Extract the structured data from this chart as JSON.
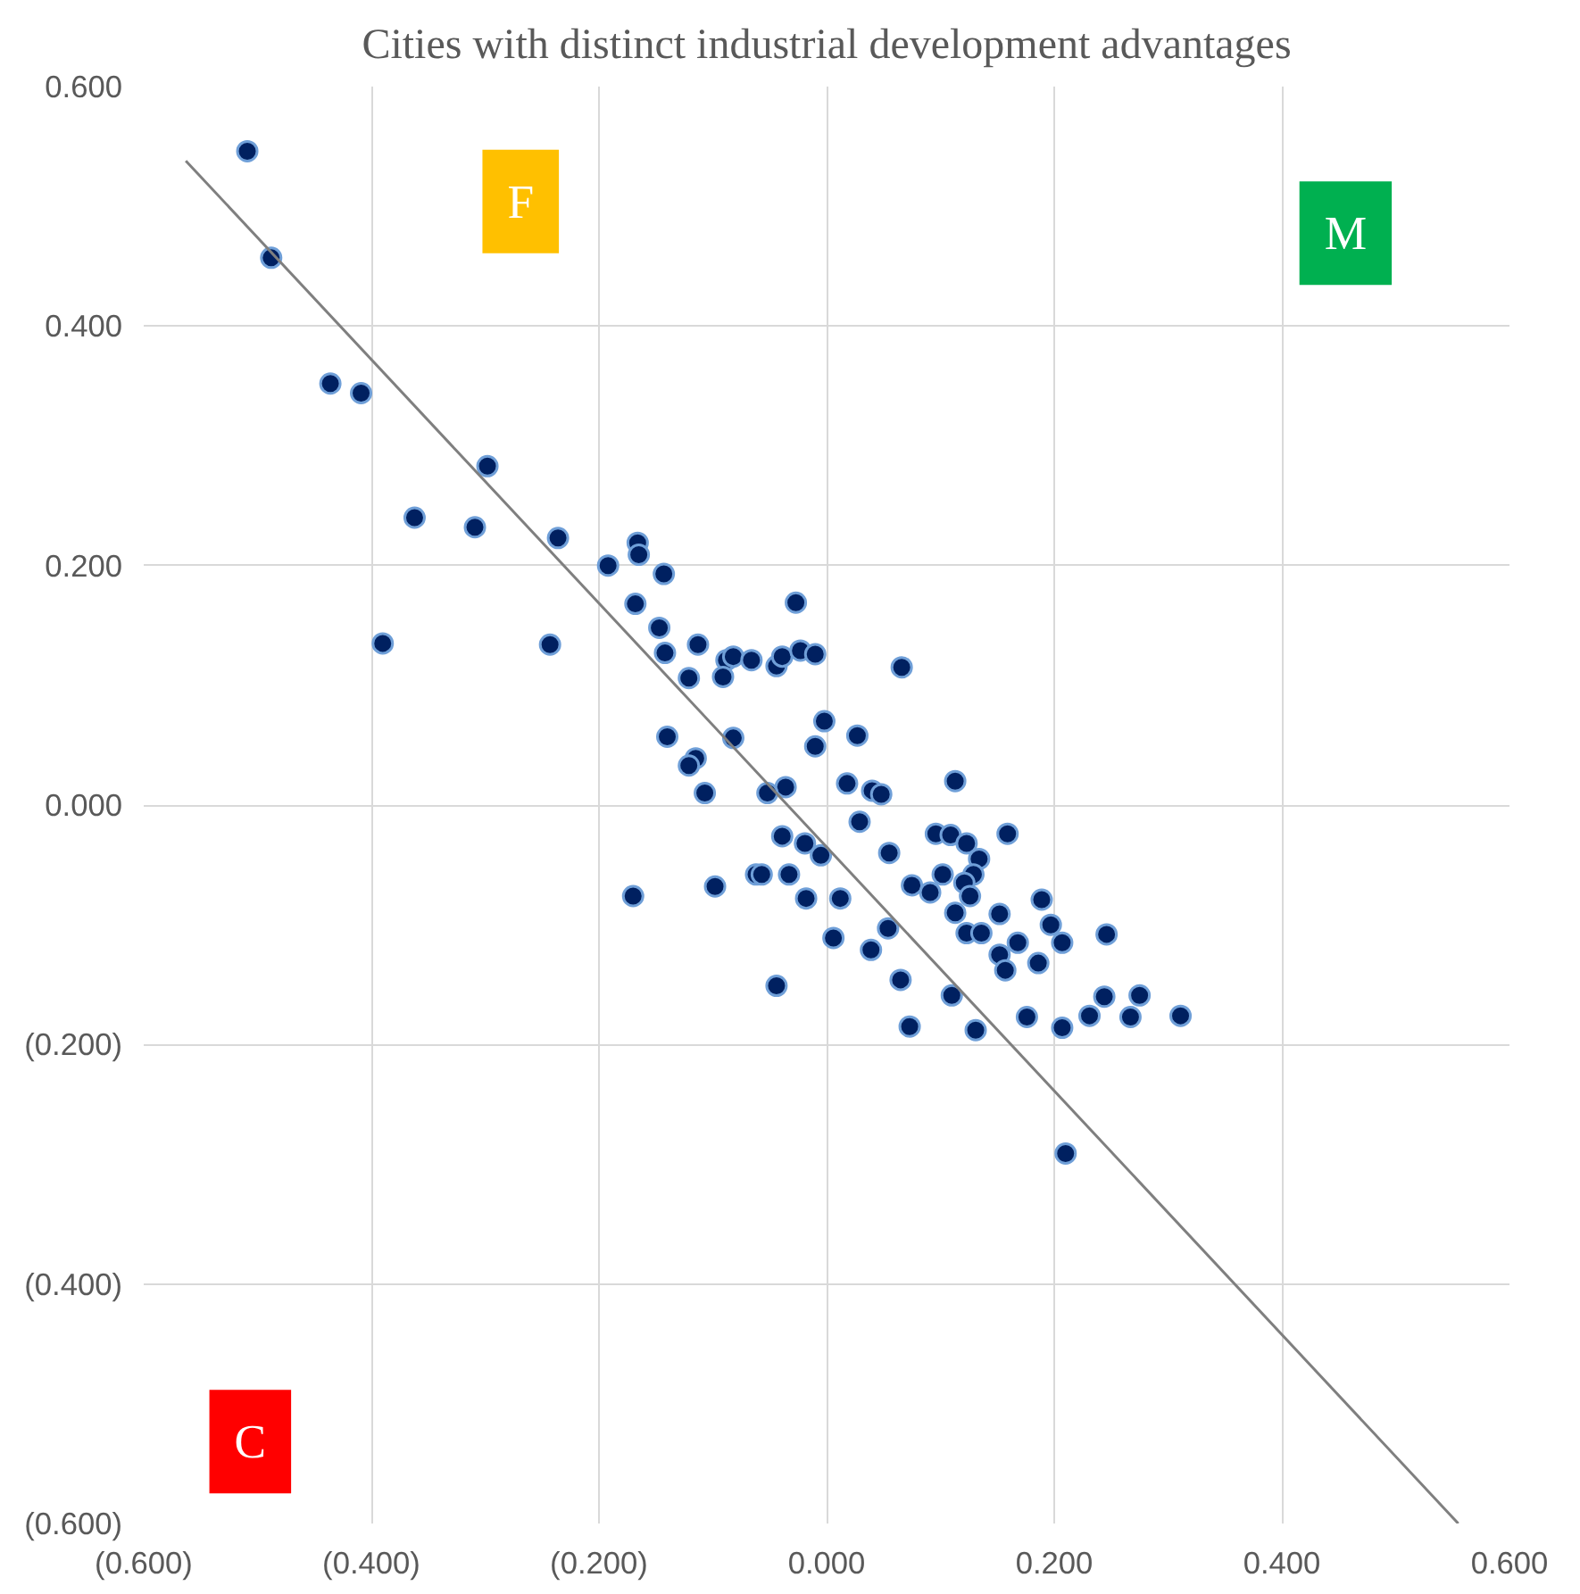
{
  "chart_data": {
    "type": "scatter",
    "title": "Cities with distinct industrial development advantages",
    "xlim": [
      -0.6,
      0.6
    ],
    "ylim": [
      -0.6,
      0.6
    ],
    "xticks": [
      {
        "value": -0.6,
        "label": "(0.600)"
      },
      {
        "value": -0.4,
        "label": "(0.400)"
      },
      {
        "value": -0.2,
        "label": "(0.200)"
      },
      {
        "value": 0,
        "label": "0.000"
      },
      {
        "value": 0.2,
        "label": "0.200"
      },
      {
        "value": 0.4,
        "label": "0.400"
      },
      {
        "value": 0.6,
        "label": "0.600"
      }
    ],
    "yticks": [
      {
        "value": -0.6,
        "label": "(0.600)"
      },
      {
        "value": -0.4,
        "label": "(0.400)"
      },
      {
        "value": -0.2,
        "label": "(0.200)"
      },
      {
        "value": 0,
        "label": "0.000"
      },
      {
        "value": 0.2,
        "label": "0.200"
      },
      {
        "value": 0.4,
        "label": "0.400"
      },
      {
        "value": 0.6,
        "label": "0.600"
      }
    ],
    "grid": true,
    "annotations": [
      "F",
      "M",
      "C"
    ],
    "series": [
      {
        "marker": "circle",
        "color": "#002060",
        "x": [
          -0.509,
          -0.488,
          -0.436,
          -0.409,
          -0.298,
          -0.362,
          -0.309,
          -0.236,
          -0.39,
          -0.243,
          -0.192,
          -0.166,
          -0.165,
          -0.143,
          -0.168,
          -0.147,
          -0.142,
          -0.113,
          -0.027,
          -0.121,
          -0.088,
          -0.082,
          -0.066,
          -0.044,
          -0.039,
          -0.023,
          -0.01,
          -0.091,
          0.066,
          -0.002,
          0.027,
          -0.14,
          -0.082,
          -0.115,
          -0.121,
          -0.01,
          0.113,
          0.018,
          0.04,
          0.048,
          -0.036,
          -0.052,
          -0.107,
          0.029,
          -0.039,
          -0.019,
          -0.005,
          0.055,
          0.096,
          0.109,
          0.123,
          0.134,
          0.159,
          0.129,
          0.102,
          0.121,
          0.126,
          0.075,
          0.091,
          0.012,
          -0.018,
          -0.062,
          -0.057,
          -0.033,
          -0.098,
          -0.17,
          0.113,
          0.152,
          0.189,
          0.197,
          0.207,
          0.246,
          0.054,
          0.039,
          0.006,
          0.123,
          0.136,
          0.152,
          0.168,
          0.157,
          0.186,
          0.065,
          0.11,
          0.176,
          0.207,
          0.231,
          0.244,
          0.267,
          0.275,
          0.131,
          0.073,
          -0.044,
          0.21,
          0.311
        ],
        "values": [
          0.546,
          0.457,
          0.352,
          0.344,
          0.283,
          0.24,
          0.232,
          0.223,
          0.135,
          0.134,
          0.2,
          0.219,
          0.209,
          0.193,
          0.168,
          0.148,
          0.127,
          0.134,
          0.169,
          0.106,
          0.121,
          0.124,
          0.121,
          0.116,
          0.124,
          0.129,
          0.126,
          0.107,
          0.115,
          0.07,
          0.058,
          0.057,
          0.056,
          0.039,
          0.033,
          0.049,
          0.02,
          0.018,
          0.012,
          0.009,
          0.015,
          0.01,
          0.01,
          -0.014,
          -0.026,
          -0.032,
          -0.042,
          -0.04,
          -0.024,
          -0.025,
          -0.032,
          -0.045,
          -0.024,
          -0.058,
          -0.058,
          -0.065,
          -0.076,
          -0.067,
          -0.073,
          -0.078,
          -0.078,
          -0.058,
          -0.058,
          -0.058,
          -0.068,
          -0.076,
          -0.09,
          -0.091,
          -0.079,
          -0.1,
          -0.115,
          -0.108,
          -0.103,
          -0.121,
          -0.111,
          -0.107,
          -0.107,
          -0.125,
          -0.115,
          -0.138,
          -0.132,
          -0.146,
          -0.159,
          -0.177,
          -0.186,
          -0.176,
          -0.16,
          -0.177,
          -0.159,
          -0.188,
          -0.185,
          -0.151,
          -0.291,
          -0.176
        ]
      },
      {
        "type": "line",
        "color": "#7f7f7f",
        "x": [
          -0.563,
          0.555
        ],
        "values": [
          0.538,
          -0.6
        ]
      }
    ]
  }
}
